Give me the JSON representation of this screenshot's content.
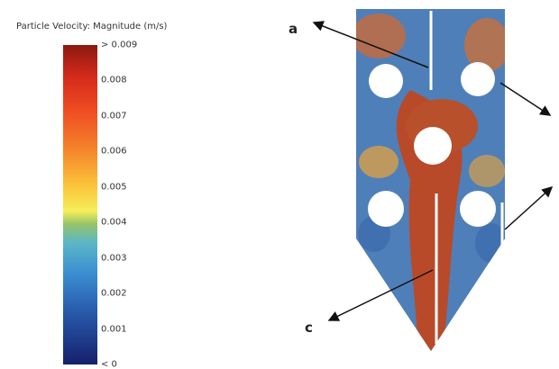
{
  "legend": {
    "title": "Particle Velocity: Magnitude (m/s)",
    "ticks": [
      "> 0.009",
      "0.008",
      "0.007",
      "0.006",
      "0.005",
      "0.004",
      "0.003",
      "0.002",
      "0.001",
      "< 0"
    ]
  },
  "annotations": [
    "a",
    "c"
  ]
}
